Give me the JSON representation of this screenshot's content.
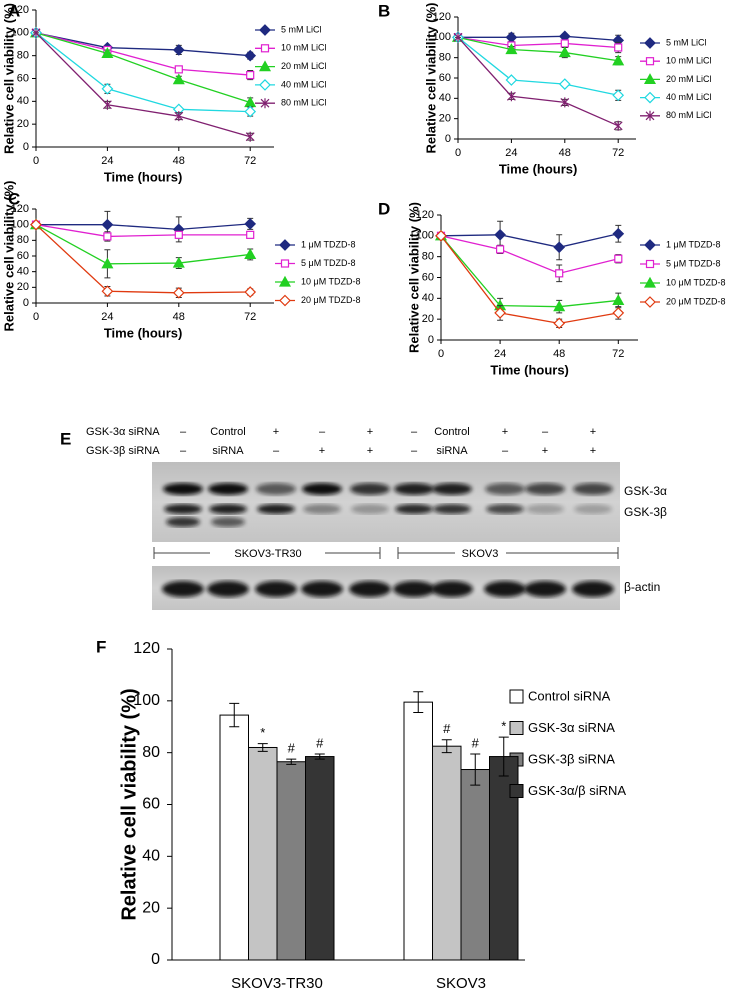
{
  "chart_data": [
    {
      "type": "line",
      "label": "A",
      "xlabel": "Time (hours)",
      "ylabel": "Relative cell viability (%)",
      "x": [
        0,
        24,
        48,
        72
      ],
      "xlim": [
        0,
        80
      ],
      "xticks": [
        0,
        24,
        48,
        72
      ],
      "ylim": [
        0,
        120
      ],
      "yticks": [
        0,
        20,
        40,
        60,
        80,
        100,
        120
      ],
      "series": [
        {
          "name": "5 mM LiCl",
          "color": "#1f2a80",
          "marker": "diamond",
          "values": [
            100,
            87,
            85,
            80
          ],
          "errors": [
            0,
            2,
            4,
            3
          ]
        },
        {
          "name": "10 mM LiCl",
          "color": "#e020d0",
          "marker": "square-open",
          "values": [
            100,
            85,
            68,
            63
          ],
          "errors": [
            0,
            2,
            2,
            4
          ]
        },
        {
          "name": "20 mM LiCl",
          "color": "#22d022",
          "marker": "triangle",
          "values": [
            100,
            82,
            59,
            39
          ],
          "errors": [
            0,
            3,
            3,
            4
          ]
        },
        {
          "name": "40 mM LiCl",
          "color": "#20d8e0",
          "marker": "diamond-open",
          "values": [
            100,
            51,
            33,
            31
          ],
          "errors": [
            0,
            4,
            2,
            4
          ]
        },
        {
          "name": "80 mM LiCl",
          "color": "#802070",
          "marker": "asterisk",
          "values": [
            100,
            37,
            27,
            9
          ],
          "errors": [
            0,
            3,
            3,
            3
          ]
        }
      ]
    },
    {
      "type": "line",
      "label": "B",
      "xlabel": "Time (hours)",
      "ylabel": "Relative cell viability (%)",
      "x": [
        0,
        24,
        48,
        72
      ],
      "xlim": [
        0,
        80
      ],
      "xticks": [
        0,
        24,
        48,
        72
      ],
      "ylim": [
        0,
        120
      ],
      "yticks": [
        0,
        20,
        40,
        60,
        80,
        100,
        120
      ],
      "series": [
        {
          "name": "5 mM LiCl",
          "color": "#1f2a80",
          "marker": "diamond",
          "values": [
            100,
            100,
            101,
            97
          ],
          "errors": [
            0,
            4,
            2,
            5
          ]
        },
        {
          "name": "10 mM LiCl",
          "color": "#e020d0",
          "marker": "square-open",
          "values": [
            100,
            92,
            94,
            90
          ],
          "errors": [
            0,
            3,
            3,
            5
          ]
        },
        {
          "name": "20 mM LiCl",
          "color": "#22d022",
          "marker": "triangle",
          "values": [
            100,
            88,
            85,
            77
          ],
          "errors": [
            0,
            3,
            5,
            4
          ]
        },
        {
          "name": "40 mM LiCl",
          "color": "#20d8e0",
          "marker": "diamond-open",
          "values": [
            100,
            58,
            54,
            43
          ],
          "errors": [
            0,
            2,
            2,
            5
          ]
        },
        {
          "name": "80 mM LiCl",
          "color": "#802070",
          "marker": "asterisk",
          "values": [
            100,
            42,
            36,
            13
          ],
          "errors": [
            0,
            3,
            3,
            4
          ]
        }
      ]
    },
    {
      "type": "line",
      "label": "C",
      "xlabel": "Time (hours)",
      "ylabel": "Relative cell viability (%)",
      "x": [
        0,
        24,
        48,
        72
      ],
      "xlim": [
        0,
        80
      ],
      "xticks": [
        0,
        24,
        48,
        72
      ],
      "ylim": [
        0,
        120
      ],
      "yticks": [
        0,
        20,
        40,
        60,
        80,
        100,
        120
      ],
      "series": [
        {
          "name": "1 μM TDZD-8",
          "color": "#1f2a80",
          "marker": "diamond",
          "values": [
            100,
            100,
            94,
            101
          ],
          "errors": [
            0,
            17,
            16,
            7
          ]
        },
        {
          "name": "5 μM TDZD-8",
          "color": "#e020d0",
          "marker": "square-open",
          "values": [
            100,
            85,
            87,
            87
          ],
          "errors": [
            0,
            6,
            4,
            3
          ]
        },
        {
          "name": "10 μM TDZD-8",
          "color": "#22d022",
          "marker": "triangle",
          "values": [
            100,
            50,
            51,
            62
          ],
          "errors": [
            0,
            18,
            7,
            7
          ]
        },
        {
          "name": "20 μM TDZD-8",
          "color": "#e03a10",
          "marker": "diamond-open",
          "values": [
            100,
            15,
            13,
            14
          ],
          "errors": [
            0,
            6,
            6,
            4
          ]
        }
      ]
    },
    {
      "type": "line",
      "label": "D",
      "xlabel": "Time (hours)",
      "ylabel": "Relative cell viability (%)",
      "x": [
        0,
        24,
        48,
        72
      ],
      "xlim": [
        0,
        80
      ],
      "xticks": [
        0,
        24,
        48,
        72
      ],
      "ylim": [
        0,
        120
      ],
      "yticks": [
        0,
        20,
        40,
        60,
        80,
        100,
        120
      ],
      "series": [
        {
          "name": "1 μM TDZD-8",
          "color": "#1f2a80",
          "marker": "diamond",
          "values": [
            100,
            101,
            89,
            102
          ],
          "errors": [
            0,
            13,
            12,
            8
          ]
        },
        {
          "name": "5 μM TDZD-8",
          "color": "#e020d0",
          "marker": "square-open",
          "values": [
            100,
            87,
            64,
            78
          ],
          "errors": [
            0,
            4,
            8,
            4
          ]
        },
        {
          "name": "10 μM TDZD-8",
          "color": "#22d022",
          "marker": "triangle",
          "values": [
            100,
            33,
            32,
            38
          ],
          "errors": [
            0,
            7,
            6,
            7
          ]
        },
        {
          "name": "20 μM TDZD-8",
          "color": "#e03a10",
          "marker": "diamond-open",
          "values": [
            100,
            26,
            16,
            26
          ],
          "errors": [
            0,
            7,
            4,
            6
          ]
        }
      ]
    },
    {
      "type": "bar",
      "label": "F",
      "ylabel": "Relative cell viability (%)",
      "categories": [
        "SKOV3-TR30",
        "SKOV3"
      ],
      "ylim": [
        0,
        120
      ],
      "yticks": [
        0,
        20,
        40,
        60,
        80,
        100,
        120
      ],
      "series": [
        {
          "name": "Control siRNA",
          "color": "#ffffff",
          "values": [
            94.5,
            99.5
          ],
          "errors": [
            4.5,
            4
          ]
        },
        {
          "name": "GSK-3α siRNA",
          "color": "#c4c4c4",
          "values": [
            82,
            82.5
          ],
          "errors": [
            1.5,
            2.5
          ],
          "significance": [
            "*",
            "#"
          ]
        },
        {
          "name": "GSK-3β siRNA",
          "color": "#808080",
          "values": [
            76.5,
            73.5
          ],
          "errors": [
            1,
            6
          ],
          "significance": [
            "#",
            "#"
          ]
        },
        {
          "name": "GSK-3α/β siRNA",
          "color": "#353535",
          "values": [
            78.5,
            78.5
          ],
          "errors": [
            1,
            7.5
          ],
          "significance": [
            "#",
            "*"
          ]
        }
      ]
    }
  ],
  "blot": {
    "label": "E",
    "rows": [
      {
        "label": "GSK-3α siRNA",
        "cells": [
          "–",
          "Control",
          "+",
          "–",
          "+",
          "–",
          "Control",
          "+",
          "–",
          "+"
        ]
      },
      {
        "label": "GSK-3β siRNA",
        "cells": [
          "–",
          "siRNA",
          "–",
          "+",
          "+",
          "–",
          "siRNA",
          "–",
          "+",
          "+"
        ]
      }
    ],
    "bands": [
      "GSK-3α",
      "GSK-3β"
    ],
    "groups": [
      "SKOV3-TR30",
      "SKOV3"
    ],
    "loading": "β-actin"
  }
}
